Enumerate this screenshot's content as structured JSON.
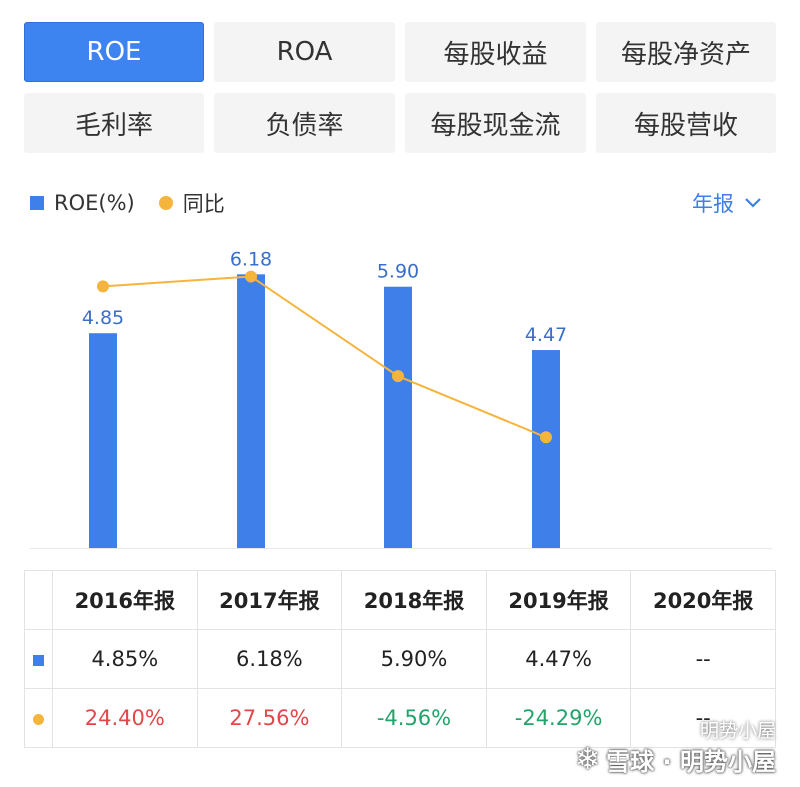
{
  "tabs": {
    "row1": [
      {
        "label": "ROE",
        "active": true
      },
      {
        "label": "ROA",
        "active": false
      },
      {
        "label": "每股收益",
        "active": false
      },
      {
        "label": "每股净资产",
        "active": false
      }
    ],
    "row2": [
      {
        "label": "毛利率",
        "active": false
      },
      {
        "label": "负债率",
        "active": false
      },
      {
        "label": "每股现金流",
        "active": false
      },
      {
        "label": "每股营收",
        "active": false
      }
    ]
  },
  "legend": {
    "bar_label": "ROE(%)",
    "line_label": "同比"
  },
  "period_selector": {
    "label": "年报"
  },
  "colors": {
    "accent": "#3e84f1",
    "bar": "#3e7fe9",
    "line": "#f5b43c",
    "up": "#e04848",
    "down": "#22a36a"
  },
  "chart_data": {
    "type": "bar",
    "categories": [
      "2016年报",
      "2017年报",
      "2018年报",
      "2019年报",
      "2020年报"
    ],
    "series": [
      {
        "name": "ROE(%)",
        "type": "bar",
        "values": [
          4.85,
          6.18,
          5.9,
          4.47,
          null
        ],
        "data_labels": [
          "4.85",
          "6.18",
          "5.90",
          "4.47",
          ""
        ]
      },
      {
        "name": "同比",
        "type": "line",
        "values": [
          24.4,
          27.56,
          -4.56,
          -24.29,
          null
        ]
      }
    ],
    "ylim": [
      0,
      7
    ],
    "line_ylim": [
      -60,
      40
    ],
    "grid": false,
    "legend": "top-left"
  },
  "table": {
    "headers": [
      "2016年报",
      "2017年报",
      "2018年报",
      "2019年报",
      "2020年报"
    ],
    "roe_row": [
      "4.85%",
      "6.18%",
      "5.90%",
      "4.47%",
      "--"
    ],
    "yoy_row": [
      "24.40%",
      "27.56%",
      "-4.56%",
      "-24.29%",
      "--"
    ]
  },
  "watermark": {
    "top": "明势小屋",
    "bottom": "雪球 · 明势小屋"
  }
}
